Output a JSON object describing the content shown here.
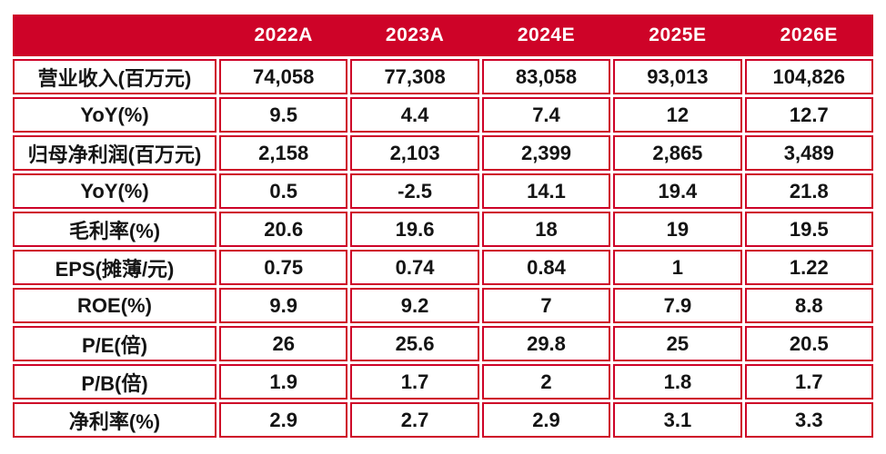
{
  "colors": {
    "accent": "#CE0328",
    "header_text": "#ffffff",
    "cell_text": "#141414",
    "background": "#ffffff"
  },
  "chart_data": {
    "type": "table",
    "title": "",
    "columns": [
      "",
      "2022A",
      "2023A",
      "2024E",
      "2025E",
      "2026E"
    ],
    "rows": [
      [
        "营业收入(百万元)",
        "74,058",
        "77,308",
        "83,058",
        "93,013",
        "104,826"
      ],
      [
        "YoY(%)",
        "9.5",
        "4.4",
        "7.4",
        "12",
        "12.7"
      ],
      [
        "归母净利润(百万元)",
        "2,158",
        "2,103",
        "2,399",
        "2,865",
        "3,489"
      ],
      [
        "YoY(%)",
        "0.5",
        "-2.5",
        "14.1",
        "19.4",
        "21.8"
      ],
      [
        "毛利率(%)",
        "20.6",
        "19.6",
        "18",
        "19",
        "19.5"
      ],
      [
        "EPS(摊薄/元)",
        "0.75",
        "0.74",
        "0.84",
        "1",
        "1.22"
      ],
      [
        "ROE(%)",
        "9.9",
        "9.2",
        "7",
        "7.9",
        "8.8"
      ],
      [
        "P/E(倍)",
        "26",
        "25.6",
        "29.8",
        "25",
        "20.5"
      ],
      [
        "P/B(倍)",
        "1.9",
        "1.7",
        "2",
        "1.8",
        "1.7"
      ],
      [
        "净利率(%)",
        "2.9",
        "2.7",
        "2.9",
        "3.1",
        "3.3"
      ]
    ]
  }
}
